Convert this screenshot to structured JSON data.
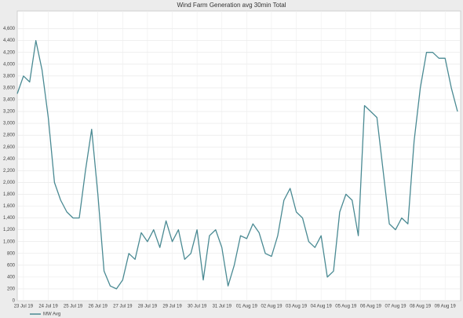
{
  "chart_data": {
    "type": "line",
    "title": "Wind Farm Generation avg 30min Total",
    "categories": [
      null,
      "23 Jul 19",
      null,
      null,
      null,
      "24 Jul 19",
      null,
      null,
      null,
      "25 Jul 19",
      null,
      null,
      null,
      "26 Jul 19",
      null,
      null,
      null,
      "27 Jul 19",
      null,
      null,
      null,
      "28 Jul 19",
      null,
      null,
      null,
      "29 Jul 19",
      null,
      null,
      null,
      "30 Jul 19",
      null,
      null,
      null,
      "31 Jul 19",
      null,
      null,
      null,
      "01 Aug 19",
      null,
      null,
      null,
      "02 Aug 19",
      null,
      null,
      null,
      "03 Aug 19",
      null,
      null,
      null,
      "04 Aug 19",
      null,
      null,
      null,
      "05 Aug 19",
      null,
      null,
      null,
      "06 Aug 19",
      null,
      null,
      null,
      "07 Aug 19",
      null,
      null,
      null,
      "08 Aug 19",
      null,
      null,
      null,
      "09 Aug 19",
      null,
      null
    ],
    "series": [
      {
        "name": "MW Avg",
        "color": "#4a8a93",
        "values": [
          3500,
          3800,
          3700,
          4400,
          3900,
          3100,
          2000,
          1700,
          1500,
          1400,
          1400,
          2200,
          2900,
          1800,
          500,
          250,
          200,
          350,
          800,
          700,
          1150,
          1000,
          1200,
          900,
          1350,
          1000,
          1200,
          700,
          800,
          1200,
          350,
          1100,
          1200,
          900,
          250,
          600,
          1100,
          1050,
          1300,
          1150,
          800,
          750,
          1100,
          1700,
          1900,
          1500,
          1400,
          1000,
          900,
          1100,
          400,
          500,
          1500,
          1800,
          1700,
          1100,
          3300,
          3200,
          3100,
          2200,
          1300,
          1200,
          1400,
          1300,
          2700,
          3600,
          4200,
          4200,
          4100,
          4100,
          3600,
          3200
        ]
      }
    ],
    "ylim": [
      0,
      4900
    ],
    "yticks": [
      0,
      200,
      400,
      600,
      800,
      {
        "value": 1000,
        "label": "1,000"
      },
      {
        "value": 1200,
        "label": "1,200"
      },
      {
        "value": 1400,
        "label": "1,400"
      },
      {
        "value": 1600,
        "label": "1,600"
      },
      {
        "value": 1800,
        "label": "1,800"
      },
      {
        "value": 2000,
        "label": "2,000"
      },
      {
        "value": 2200,
        "label": "2,200"
      },
      {
        "value": 2400,
        "label": "2,400"
      },
      {
        "value": 2600,
        "label": "2,600"
      },
      {
        "value": 2800,
        "label": "2,800"
      },
      {
        "value": 3000,
        "label": "3,000"
      },
      {
        "value": 3200,
        "label": "3,200"
      },
      {
        "value": 3400,
        "label": "3,400"
      },
      {
        "value": 3600,
        "label": "3,600"
      },
      {
        "value": 3800,
        "label": "3,800"
      },
      {
        "value": 4000,
        "label": "4,000"
      },
      {
        "value": 4200,
        "label": "4,200"
      },
      {
        "value": 4400,
        "label": "4,400"
      },
      {
        "value": 4600,
        "label": "4,600"
      }
    ],
    "grid": true
  }
}
